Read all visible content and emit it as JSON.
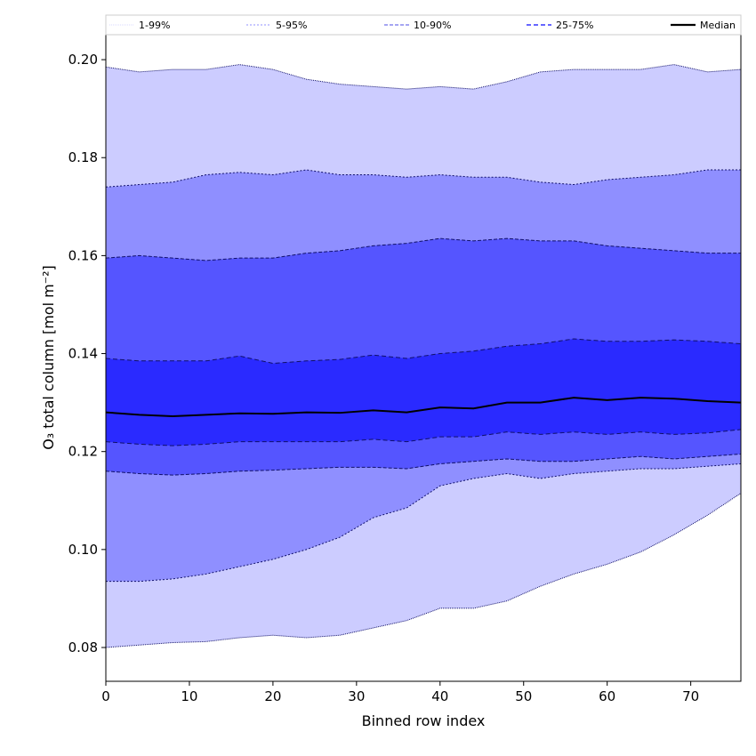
{
  "chart_data": {
    "type": "area",
    "title": "",
    "xlabel": "Binned row index",
    "ylabel": "O₃ total column [mol m⁻²]",
    "xlim": [
      0,
      76
    ],
    "ylim": [
      0.0731,
      0.2051
    ],
    "xticks": [
      0,
      10,
      20,
      30,
      40,
      50,
      60,
      70
    ],
    "xtick_labels": [
      "0",
      "10",
      "20",
      "30",
      "40",
      "50",
      "60",
      "70"
    ],
    "yticks": [
      0.08,
      0.1,
      0.12,
      0.14,
      0.16,
      0.18,
      0.2
    ],
    "ytick_labels": [
      "0.08",
      "0.10",
      "0.12",
      "0.14",
      "0.16",
      "0.18",
      "0.20"
    ],
    "grid": false,
    "legend_position": "top, above plot",
    "x": [
      0,
      4,
      8,
      12,
      16,
      20,
      24,
      28,
      32,
      36,
      40,
      44,
      48,
      52,
      56,
      60,
      64,
      68,
      72,
      76
    ],
    "series": {
      "p1": [
        0.08,
        0.0805,
        0.081,
        0.0812,
        0.082,
        0.0825,
        0.082,
        0.0825,
        0.084,
        0.0855,
        0.088,
        0.088,
        0.0895,
        0.0925,
        0.095,
        0.097,
        0.0995,
        0.103,
        0.107,
        0.1115
      ],
      "p5": [
        0.0935,
        0.0935,
        0.094,
        0.095,
        0.0965,
        0.098,
        0.1,
        0.1025,
        0.1065,
        0.1085,
        0.113,
        0.1145,
        0.1155,
        0.1145,
        0.1155,
        0.116,
        0.1165,
        0.1165,
        0.117,
        0.1175
      ],
      "p10": [
        0.116,
        0.1155,
        0.1152,
        0.1155,
        0.116,
        0.1162,
        0.1165,
        0.1168,
        0.1168,
        0.1165,
        0.1175,
        0.118,
        0.1185,
        0.118,
        0.118,
        0.1185,
        0.119,
        0.1185,
        0.119,
        0.1195
      ],
      "p25": [
        0.122,
        0.1215,
        0.1212,
        0.1215,
        0.122,
        0.122,
        0.122,
        0.122,
        0.1225,
        0.122,
        0.123,
        0.123,
        0.124,
        0.1235,
        0.124,
        0.1235,
        0.124,
        0.1235,
        0.1238,
        0.1245
      ],
      "median": [
        0.128,
        0.1275,
        0.1272,
        0.1275,
        0.1278,
        0.1277,
        0.128,
        0.1279,
        0.1284,
        0.128,
        0.129,
        0.1288,
        0.13,
        0.13,
        0.131,
        0.1305,
        0.131,
        0.1308,
        0.1303,
        0.13
      ],
      "p75": [
        0.139,
        0.1385,
        0.1385,
        0.1385,
        0.1395,
        0.138,
        0.1385,
        0.1388,
        0.1397,
        0.139,
        0.14,
        0.1405,
        0.1415,
        0.142,
        0.143,
        0.1425,
        0.1425,
        0.1428,
        0.1425,
        0.142
      ],
      "p90": [
        0.1595,
        0.16,
        0.1595,
        0.159,
        0.1595,
        0.1595,
        0.1605,
        0.161,
        0.162,
        0.1625,
        0.1635,
        0.163,
        0.1635,
        0.163,
        0.163,
        0.162,
        0.1615,
        0.161,
        0.1605,
        0.1605
      ],
      "p95": [
        0.174,
        0.1745,
        0.175,
        0.1765,
        0.177,
        0.1765,
        0.1775,
        0.1765,
        0.1765,
        0.176,
        0.1765,
        0.176,
        0.176,
        0.175,
        0.1745,
        0.1755,
        0.176,
        0.1765,
        0.1775,
        0.1775
      ],
      "p99": [
        0.1985,
        0.1975,
        0.198,
        0.198,
        0.199,
        0.198,
        0.196,
        0.195,
        0.1945,
        0.194,
        0.1945,
        0.194,
        0.1955,
        0.1975,
        0.198,
        0.198,
        0.198,
        0.199,
        0.1975,
        0.198
      ]
    },
    "bands": [
      {
        "name": "1-99%",
        "lower": "p1",
        "upper": "p99",
        "color": "#ccccff",
        "line_color": "#d8d8ff"
      },
      {
        "name": "5-95%",
        "lower": "p5",
        "upper": "p95",
        "color": "#8f8fff",
        "line_color": "#a8a8ff"
      },
      {
        "name": "10-90%",
        "lower": "p10",
        "upper": "p90",
        "color": "#5555ff",
        "line_color": "#8888ee"
      },
      {
        "name": "25-75%",
        "lower": "p25",
        "upper": "p75",
        "color": "#2a2aff",
        "line_color": "#6666ff"
      }
    ],
    "median": {
      "name": "Median",
      "color": "#000000"
    }
  }
}
